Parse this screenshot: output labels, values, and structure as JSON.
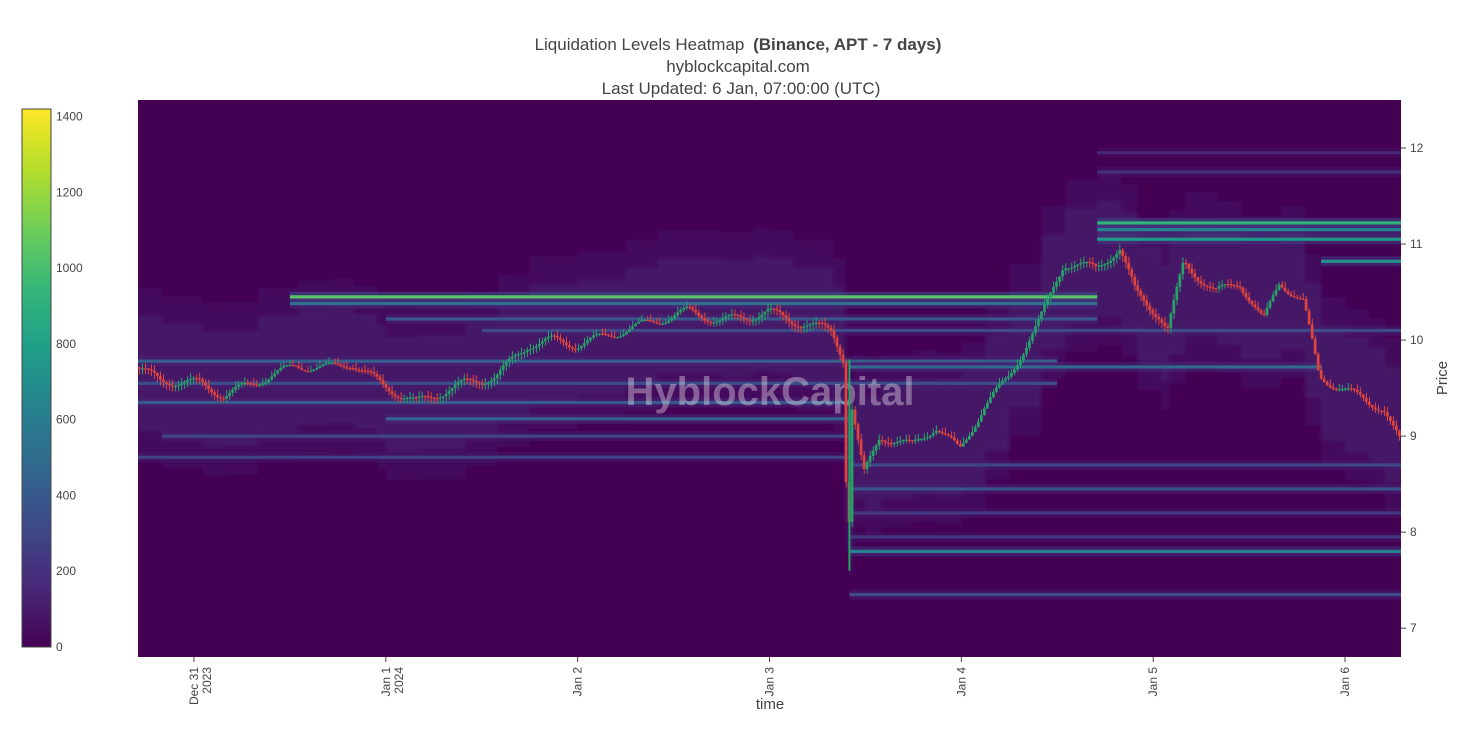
{
  "title": {
    "main": "Liquidation Levels Heatmap",
    "bold": "(Binance, APT - 7 days)",
    "subtitle": "hyblockcapital.com",
    "updated": "Last Updated: 6 Jan, 07:00:00 (UTC)"
  },
  "watermark": "HyblockCapital",
  "colors": {
    "viridis": [
      "#440154",
      "#482878",
      "#3e4989",
      "#31688e",
      "#26828e",
      "#1f9e89",
      "#35b779",
      "#6ece58",
      "#b5de2b",
      "#fde725"
    ],
    "candle_up": "#26a269",
    "candle_down": "#e0453c"
  },
  "chart_data": {
    "type": "heatmap",
    "xlabel": "time",
    "ylabel": "Price",
    "ylim": [
      6.7,
      12.5
    ],
    "xlim": [
      "2023-12-30T17:00",
      "2024-01-06T07:00"
    ],
    "x_ticks": [
      {
        "t": "2023-12-31T00:00",
        "lines": [
          "Dec 31",
          "2023"
        ]
      },
      {
        "t": "2024-01-01T00:00",
        "lines": [
          "Jan 1",
          "2024"
        ]
      },
      {
        "t": "2024-01-02T00:00",
        "lines": [
          "Jan 2"
        ]
      },
      {
        "t": "2024-01-03T00:00",
        "lines": [
          "Jan 3"
        ]
      },
      {
        "t": "2024-01-04T00:00",
        "lines": [
          "Jan 4"
        ]
      },
      {
        "t": "2024-01-05T00:00",
        "lines": [
          "Jan 5"
        ]
      },
      {
        "t": "2024-01-06T00:00",
        "lines": [
          "Jan 6"
        ]
      }
    ],
    "y_ticks": [
      7,
      8,
      9,
      10,
      11,
      12
    ],
    "colorbar": {
      "range": [
        0,
        1420
      ],
      "ticks": [
        0,
        200,
        400,
        600,
        800,
        1000,
        1200,
        1400
      ]
    },
    "price_path": [
      [
        "2023-12-30T17:00",
        9.72
      ],
      [
        "2023-12-30T20:00",
        9.58
      ],
      [
        "2023-12-31T01:00",
        9.55
      ],
      [
        "2023-12-31T04:00",
        9.42
      ],
      [
        "2023-12-31T08:00",
        9.57
      ],
      [
        "2023-12-31T13:00",
        9.73
      ],
      [
        "2023-12-31T17:00",
        9.71
      ],
      [
        "2023-12-31T20:00",
        9.76
      ],
      [
        "2023-12-31T23:00",
        9.58
      ],
      [
        "2024-01-01T00:00",
        9.52
      ],
      [
        "2024-01-01T04:00",
        9.35
      ],
      [
        "2024-01-01T10:00",
        9.55
      ],
      [
        "2024-01-01T14:00",
        9.62
      ],
      [
        "2024-01-01T18:00",
        9.95
      ],
      [
        "2024-01-01T21:00",
        10.0
      ],
      [
        "2024-01-02T00:00",
        9.95
      ],
      [
        "2024-01-02T06:00",
        10.1
      ],
      [
        "2024-01-02T10:00",
        10.2
      ],
      [
        "2024-01-02T14:00",
        10.3
      ],
      [
        "2024-01-02T18:00",
        10.2
      ],
      [
        "2024-01-02T22:00",
        10.25
      ],
      [
        "2024-01-03T00:00",
        10.3
      ],
      [
        "2024-01-03T03:00",
        10.2
      ],
      [
        "2024-01-03T08:00",
        10.1
      ],
      [
        "2024-01-03T09:30",
        9.8
      ],
      [
        "2024-01-03T10:00",
        7.6
      ],
      [
        "2024-01-03T10:30",
        9.3
      ],
      [
        "2024-01-03T12:00",
        8.6
      ],
      [
        "2024-01-03T14:00",
        9.0
      ],
      [
        "2024-01-03T18:00",
        8.9
      ],
      [
        "2024-01-03T21:00",
        9.1
      ],
      [
        "2024-01-04T00:00",
        8.85
      ],
      [
        "2024-01-04T03:00",
        9.3
      ],
      [
        "2024-01-04T06:00",
        9.6
      ],
      [
        "2024-01-04T10:00",
        10.2
      ],
      [
        "2024-01-04T13:00",
        10.8
      ],
      [
        "2024-01-04T17:00",
        10.75
      ],
      [
        "2024-01-04T20:00",
        10.95
      ],
      [
        "2024-01-04T22:00",
        10.5
      ],
      [
        "2024-01-05T01:00",
        10.25
      ],
      [
        "2024-01-05T02:00",
        10.1
      ],
      [
        "2024-01-05T04:00",
        10.8
      ],
      [
        "2024-01-05T08:00",
        10.5
      ],
      [
        "2024-01-05T11:00",
        10.6
      ],
      [
        "2024-01-05T14:00",
        10.2
      ],
      [
        "2024-01-05T16:00",
        10.6
      ],
      [
        "2024-01-05T19:00",
        10.4
      ],
      [
        "2024-01-05T21:00",
        9.6
      ],
      [
        "2024-01-06T00:00",
        9.5
      ],
      [
        "2024-01-06T03:00",
        9.35
      ],
      [
        "2024-01-06T05:00",
        9.3
      ],
      [
        "2024-01-06T07:00",
        8.95
      ]
    ],
    "levels": [
      {
        "price": 10.45,
        "from": "2023-12-31T12:00",
        "to": "2024-01-04T17:00",
        "value": 1050
      },
      {
        "price": 10.38,
        "from": "2023-12-31T12:00",
        "to": "2024-01-04T17:00",
        "value": 520
      },
      {
        "price": 10.22,
        "from": "2024-01-01T00:00",
        "to": "2024-01-04T17:00",
        "value": 380
      },
      {
        "price": 10.1,
        "from": "2024-01-01T12:00",
        "to": "2024-01-06T07:00",
        "value": 320
      },
      {
        "price": 9.78,
        "from": "2023-12-30T17:00",
        "to": "2024-01-04T12:00",
        "value": 420
      },
      {
        "price": 9.72,
        "from": "2024-01-03T10:00",
        "to": "2024-01-05T21:00",
        "value": 480
      },
      {
        "price": 9.55,
        "from": "2023-12-30T17:00",
        "to": "2024-01-04T12:00",
        "value": 340
      },
      {
        "price": 9.35,
        "from": "2023-12-30T17:00",
        "to": "2024-01-03T10:00",
        "value": 400
      },
      {
        "price": 9.18,
        "from": "2024-01-01T00:00",
        "to": "2024-01-03T10:00",
        "value": 440
      },
      {
        "price": 9.0,
        "from": "2023-12-30T20:00",
        "to": "2024-01-03T10:00",
        "value": 300
      },
      {
        "price": 8.78,
        "from": "2023-12-30T17:00",
        "to": "2024-01-03T10:00",
        "value": 280
      },
      {
        "price": 8.7,
        "from": "2024-01-03T10:00",
        "to": "2024-01-06T07:00",
        "value": 300
      },
      {
        "price": 8.45,
        "from": "2024-01-03T10:00",
        "to": "2024-01-06T07:00",
        "value": 360
      },
      {
        "price": 8.2,
        "from": "2024-01-03T10:00",
        "to": "2024-01-06T07:00",
        "value": 240
      },
      {
        "price": 7.95,
        "from": "2024-01-03T10:00",
        "to": "2024-01-06T07:00",
        "value": 220
      },
      {
        "price": 7.8,
        "from": "2024-01-03T10:00",
        "to": "2024-01-06T07:00",
        "value": 620
      },
      {
        "price": 7.35,
        "from": "2024-01-03T10:00",
        "to": "2024-01-06T07:00",
        "value": 330
      },
      {
        "price": 11.22,
        "from": "2024-01-04T17:00",
        "to": "2024-01-06T07:00",
        "value": 920
      },
      {
        "price": 11.15,
        "from": "2024-01-04T17:00",
        "to": "2024-01-06T07:00",
        "value": 640
      },
      {
        "price": 11.05,
        "from": "2024-01-04T17:00",
        "to": "2024-01-06T07:00",
        "value": 760
      },
      {
        "price": 10.82,
        "from": "2024-01-05T21:00",
        "to": "2024-01-06T07:00",
        "value": 700
      },
      {
        "price": 11.75,
        "from": "2024-01-04T17:00",
        "to": "2024-01-06T07:00",
        "value": 200
      },
      {
        "price": 11.95,
        "from": "2024-01-04T17:00",
        "to": "2024-01-06T07:00",
        "value": 150
      }
    ]
  }
}
